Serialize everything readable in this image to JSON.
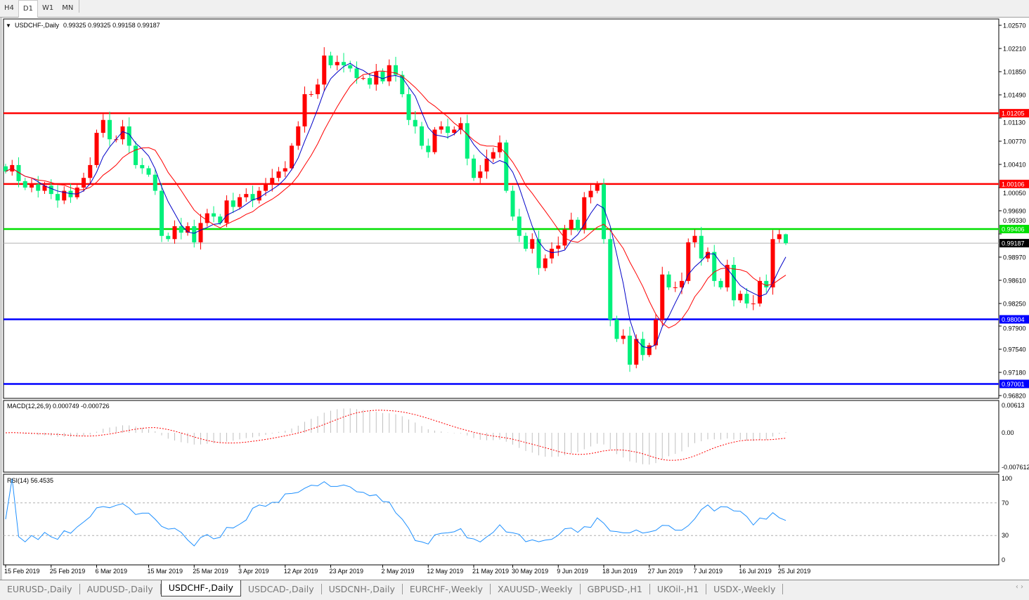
{
  "timeframes": [
    {
      "label": "H4",
      "active": false
    },
    {
      "label": "D1",
      "active": true
    },
    {
      "label": "W1",
      "active": false
    },
    {
      "label": "MN",
      "active": false
    }
  ],
  "header": {
    "symbol": "USDCHF-,Daily",
    "ohlc": "0.99325 0.99325 0.99158 0.99187"
  },
  "colors": {
    "up": "#ff0000",
    "down": "#00f07c",
    "ma_fast": "#0000c8",
    "ma_slow": "#ff0000",
    "resistance": "#ff0000",
    "support_green": "#00e000",
    "support_blue": "#0000ff",
    "macd_hist": "#c0c0c0",
    "macd_signal": "#ff0000",
    "rsi": "#1e90ff"
  },
  "price_axis": [
    "1.02570",
    "1.02210",
    "1.01850",
    "1.01490",
    "1.01130",
    "1.00770",
    "1.00410",
    "1.00050",
    "0.99690",
    "0.99330",
    "0.98970",
    "0.98610",
    "0.98250",
    "0.97900",
    "0.97540",
    "0.97180",
    "0.96820"
  ],
  "levels": [
    {
      "price": "1.01205",
      "kind": "resistance"
    },
    {
      "price": "1.00106",
      "kind": "resistance"
    },
    {
      "price": "0.99406",
      "kind": "support_green"
    },
    {
      "price": "0.98004",
      "kind": "support_blue"
    },
    {
      "price": "0.97001",
      "kind": "support_blue"
    }
  ],
  "current_price": "0.99187",
  "chart_data": {
    "type": "candlestick",
    "closes": [
      1.003,
      1.004,
      1.0015,
      1.0005,
      1.001,
      1.0,
      1.0008,
      0.9995,
      0.9985,
      1.0,
      0.999,
      1.0005,
      1.002,
      1.004,
      1.009,
      1.011,
      1.008,
      1.008,
      1.01,
      1.007,
      1.004,
      1.0035,
      1.0025,
      1.0,
      0.993,
      0.9925,
      0.9945,
      0.9935,
      0.9945,
      0.992,
      0.995,
      0.9965,
      0.996,
      0.995,
      0.9985,
      0.9975,
      0.999,
      0.9995,
      0.9985,
      1.0,
      1.001,
      1.002,
      1.003,
      1.0035,
      1.007,
      1.01,
      1.015,
      1.015,
      1.0165,
      1.021,
      1.0195,
      1.02,
      1.0195,
      1.019,
      1.0175,
      1.0175,
      1.0165,
      1.0185,
      1.017,
      1.0195,
      1.018,
      1.015,
      1.011,
      1.01,
      1.007,
      1.006,
      1.0095,
      1.01,
      1.009,
      1.0095,
      1.0105,
      1.005,
      1.002,
      1.003,
      1.005,
      1.006,
      1.0075,
      1.0,
      0.996,
      0.993,
      0.991,
      0.9925,
      0.988,
      0.9895,
      0.991,
      0.9915,
      0.994,
      0.9955,
      0.994,
      0.999,
      1.0,
      1.001,
      0.9925,
      0.98,
      0.977,
      0.9775,
      0.973,
      0.977,
      0.9745,
      0.976,
      0.98,
      0.987,
      0.985,
      0.985,
      0.986,
      0.992,
      0.993,
      0.9895,
      0.9905,
      0.986,
      0.985,
      0.9885,
      0.983,
      0.984,
      0.9825,
      0.9825,
      0.986,
      0.985,
      0.9925,
      0.99325,
      0.99187
    ],
    "last_bar": {
      "open": 0.99325,
      "high": 0.99325,
      "low": 0.99158,
      "close": 0.99187
    },
    "x_labels": [
      "15 Feb 2019",
      "25 Feb 2019",
      "6 Mar 2019",
      "15 Mar 2019",
      "25 Mar 2019",
      "3 Apr 2019",
      "12 Apr 2019",
      "23 Apr 2019",
      "2 May 2019",
      "12 May 2019",
      "21 May 2019",
      "30 May 2019",
      "9 Jun 2019",
      "18 Jun 2019",
      "27 Jun 2019",
      "7 Jul 2019",
      "16 Jul 2019",
      "25 Jul 2019"
    ],
    "ylim": [
      0.9682,
      1.0257
    ]
  },
  "macd": {
    "label": "MACD(12,26,9) 0.000749 -0.000726",
    "axis": [
      "0.00613",
      "0.00",
      "-0.007612"
    ]
  },
  "rsi": {
    "label": "RSI(14) 56.4535",
    "axis": [
      "100",
      "70",
      "30",
      "0"
    ]
  },
  "tabs": [
    {
      "label": "EURUSD-,Daily",
      "active": false
    },
    {
      "label": "AUDUSD-,Daily",
      "active": false
    },
    {
      "label": "USDCHF-,Daily",
      "active": true
    },
    {
      "label": "USDCAD-,Daily",
      "active": false
    },
    {
      "label": "USDCNH-,Daily",
      "active": false
    },
    {
      "label": "EURCHF-,Weekly",
      "active": false
    },
    {
      "label": "XAUUSD-,Weekly",
      "active": false
    },
    {
      "label": "GBPUSD-,H1",
      "active": false
    },
    {
      "label": "UKOil-,H1",
      "active": false
    },
    {
      "label": "USDX-,Weekly",
      "active": false
    }
  ],
  "scroll_arrows": "‹ ›"
}
